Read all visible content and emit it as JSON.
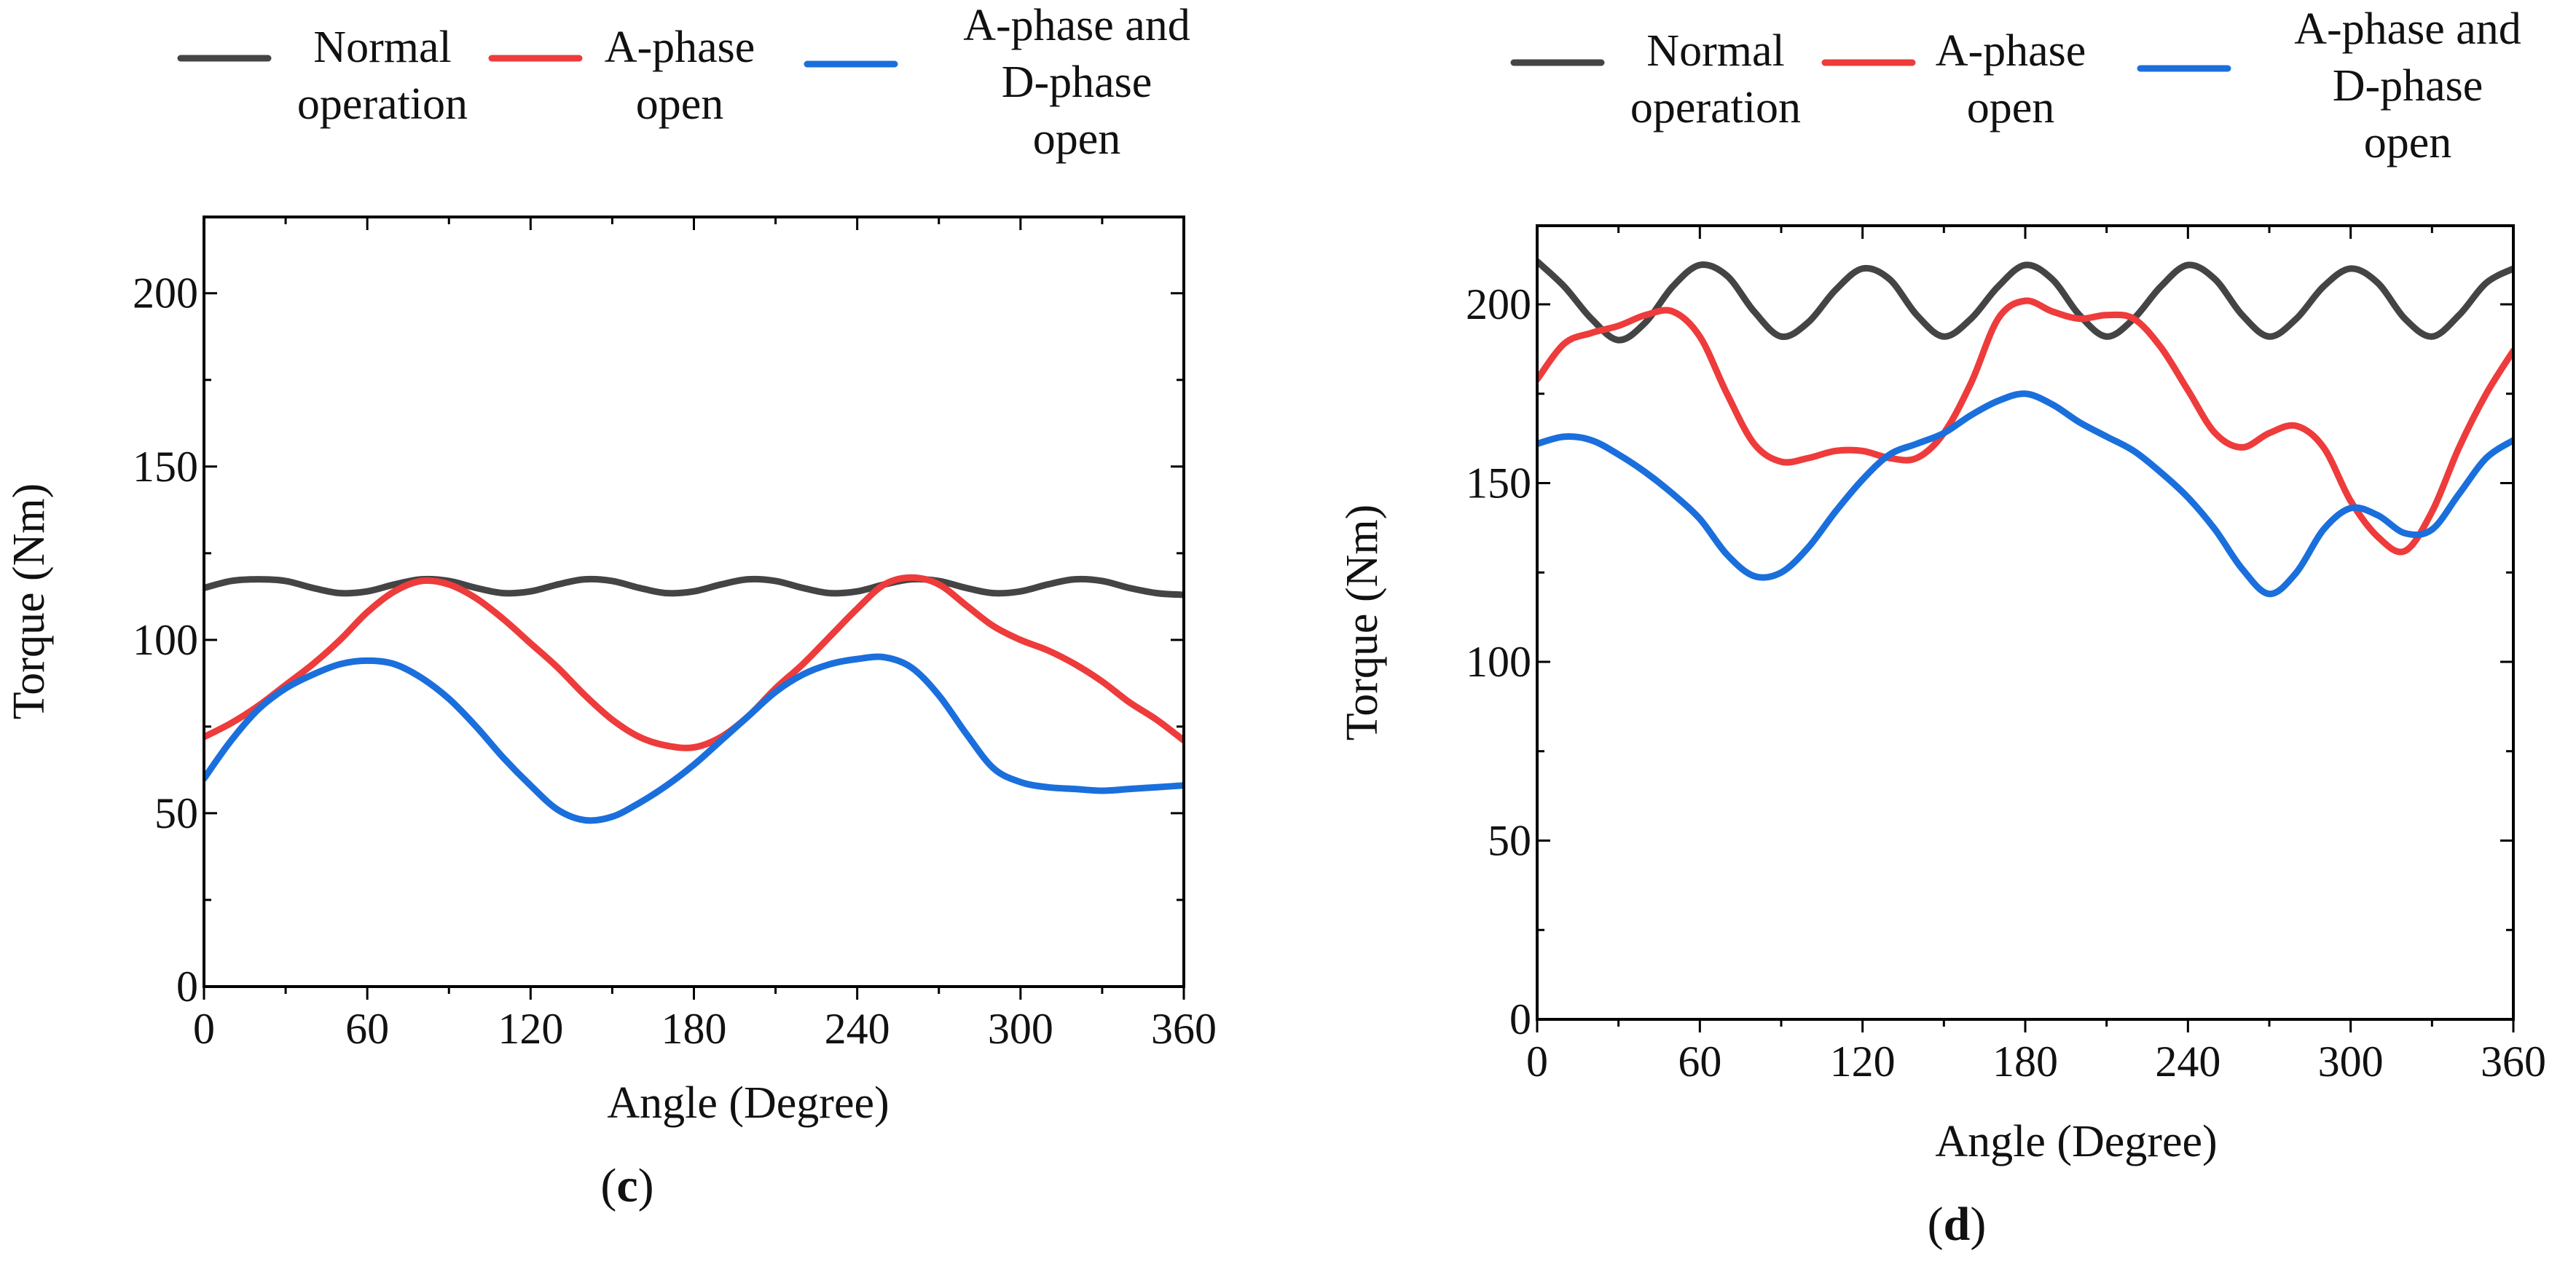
{
  "chart_data": [
    {
      "type": "line",
      "panel_label": "c",
      "xlabel": "Angle (Degree)",
      "ylabel": "Torque (Nm)",
      "xlim": [
        0,
        360
      ],
      "ylim": [
        0,
        222
      ],
      "x_ticks": [
        0,
        60,
        120,
        180,
        240,
        300,
        360
      ],
      "y_ticks": [
        0,
        50,
        100,
        150,
        200
      ],
      "legend_position": "top",
      "series": [
        {
          "name_lines": [
            "Normal",
            "operation"
          ],
          "color": "#444444",
          "x": [
            0,
            10,
            20,
            30,
            40,
            50,
            60,
            70,
            80,
            90,
            100,
            110,
            120,
            130,
            140,
            150,
            160,
            170,
            180,
            190,
            200,
            210,
            220,
            230,
            240,
            250,
            260,
            270,
            280,
            290,
            300,
            310,
            320,
            330,
            340,
            350,
            360
          ],
          "y": [
            115,
            117,
            117.5,
            117,
            115,
            113.5,
            114,
            116,
            117.5,
            117,
            115,
            113.5,
            114,
            116,
            117.5,
            117,
            115,
            113.5,
            114,
            116,
            117.5,
            117,
            115,
            113.5,
            114,
            116,
            117.5,
            117,
            115,
            113.5,
            114,
            116,
            117.5,
            117,
            115,
            113.5,
            113
          ]
        },
        {
          "name_lines": [
            "A-phase",
            "open"
          ],
          "color": "#ee3b3b",
          "x": [
            0,
            10,
            20,
            30,
            40,
            50,
            60,
            70,
            80,
            90,
            100,
            110,
            120,
            130,
            140,
            150,
            160,
            170,
            180,
            190,
            200,
            210,
            220,
            230,
            240,
            250,
            260,
            270,
            280,
            290,
            300,
            310,
            320,
            330,
            340,
            350,
            360
          ],
          "y": [
            72,
            76,
            81,
            87,
            93,
            100,
            108,
            114,
            117,
            116,
            112,
            106,
            99,
            92,
            84,
            77,
            72,
            69.5,
            69,
            72,
            78,
            86,
            93,
            101,
            109,
            116,
            118,
            116,
            110,
            104,
            100,
            97,
            93,
            88,
            82,
            77,
            71
          ]
        },
        {
          "name_lines": [
            "A-phase and",
            "D-phase",
            "open"
          ],
          "color": "#1a6fdc",
          "x": [
            0,
            10,
            20,
            30,
            40,
            50,
            60,
            70,
            80,
            90,
            100,
            110,
            120,
            130,
            140,
            150,
            160,
            170,
            180,
            190,
            200,
            210,
            220,
            230,
            240,
            250,
            260,
            270,
            280,
            290,
            300,
            310,
            320,
            330,
            340,
            350,
            360
          ],
          "y": [
            60,
            71,
            80,
            86,
            90,
            93,
            94,
            93,
            89,
            83,
            75,
            66,
            58,
            51,
            48,
            49,
            53,
            58,
            64,
            71,
            78,
            85,
            90,
            93,
            94.5,
            95,
            92,
            84,
            73,
            63,
            59,
            57.5,
            57,
            56.5,
            57,
            57.5,
            58
          ]
        }
      ]
    },
    {
      "type": "line",
      "panel_label": "d",
      "xlabel": "Angle (Degree)",
      "ylabel": "Torque (Nm)",
      "xlim": [
        0,
        360
      ],
      "ylim": [
        0,
        222
      ],
      "x_ticks": [
        0,
        60,
        120,
        180,
        240,
        300,
        360
      ],
      "y_ticks": [
        0,
        50,
        100,
        150,
        200
      ],
      "legend_position": "top",
      "series": [
        {
          "name_lines": [
            "Normal",
            "operation"
          ],
          "color": "#444444",
          "x": [
            0,
            10,
            20,
            30,
            40,
            50,
            60,
            70,
            80,
            90,
            100,
            110,
            120,
            130,
            140,
            150,
            160,
            170,
            180,
            190,
            200,
            210,
            220,
            230,
            240,
            250,
            260,
            270,
            280,
            290,
            300,
            310,
            320,
            330,
            340,
            350,
            360
          ],
          "y": [
            212,
            205,
            196,
            190,
            195,
            205,
            211,
            208,
            198,
            191,
            195,
            204,
            210,
            207,
            197,
            191,
            196,
            205,
            211,
            207,
            197,
            191,
            196,
            205,
            211,
            207,
            197,
            191,
            196,
            205,
            210,
            206,
            196,
            191,
            197,
            206,
            210
          ]
        },
        {
          "name_lines": [
            "A-phase",
            "open"
          ],
          "color": "#ee3b3b",
          "x": [
            0,
            10,
            20,
            30,
            40,
            50,
            60,
            70,
            80,
            90,
            100,
            110,
            120,
            130,
            140,
            150,
            160,
            170,
            180,
            190,
            200,
            210,
            220,
            230,
            240,
            250,
            260,
            270,
            280,
            290,
            300,
            310,
            320,
            330,
            340,
            350,
            360
          ],
          "y": [
            179,
            189,
            192,
            194,
            197,
            198,
            191,
            175,
            161,
            156,
            157,
            159,
            159,
            157,
            157,
            164,
            178,
            196,
            201,
            198,
            196,
            197,
            196,
            188,
            176,
            164,
            160,
            164,
            166,
            160,
            145,
            135,
            131,
            142,
            160,
            175,
            187
          ]
        },
        {
          "name_lines": [
            "A-phase and",
            "D-phase",
            "open"
          ],
          "color": "#1a6fdc",
          "x": [
            0,
            10,
            20,
            30,
            40,
            50,
            60,
            70,
            80,
            90,
            100,
            110,
            120,
            130,
            140,
            150,
            160,
            170,
            180,
            190,
            200,
            210,
            220,
            230,
            240,
            250,
            260,
            270,
            280,
            290,
            300,
            310,
            320,
            330,
            340,
            350,
            360
          ],
          "y": [
            161,
            163,
            162,
            158,
            153,
            147,
            140,
            130,
            124,
            125,
            132,
            142,
            151,
            158,
            161,
            164,
            169,
            173,
            175,
            172,
            167,
            163,
            159,
            153,
            146,
            137,
            126,
            119,
            125,
            137,
            143,
            141,
            136,
            137,
            147,
            157,
            162
          ]
        }
      ]
    }
  ]
}
